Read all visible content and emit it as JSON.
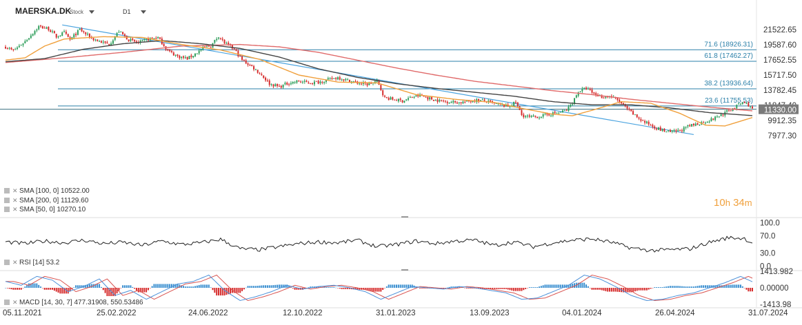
{
  "header": {
    "symbol": "MAERSKA.DK",
    "type": "Stock",
    "timeframe": "D1"
  },
  "colors": {
    "up": "#2e9e5b",
    "down": "#d62c2c",
    "sma50": "#f0a03c",
    "sma100": "#444444",
    "sma200": "#e06a6a",
    "fib": "#2a7fa8",
    "trend": "#4aa3df",
    "price_tag": "#7a7a7a",
    "macd_line": "#4a90d9",
    "signal_line": "#d9534f",
    "hist_pos": "#3a8fd0",
    "hist_neg": "#d62c2c"
  },
  "legend": {
    "sma100": "SMA [100, 0] 10522.00",
    "sma200": "SMA [200, 0] 11129.60",
    "sma50": "SMA [50, 0] 10270.10",
    "rsi": "RSI [14] 53.2",
    "macd": "MACD [14, 30, 7] 477.31908, 550.53486"
  },
  "timer": {
    "h": "10",
    "h_unit": "h",
    "m": "34",
    "m_unit": "m"
  },
  "current_price": "11330.00",
  "chart_data": {
    "type": "candlestick",
    "price_axis_ticks": [
      "21522.65",
      "19587.60",
      "17652.55",
      "15717.50",
      "13782.45",
      "11847.40",
      "9912.35",
      "7977.30"
    ],
    "x_axis_ticks": [
      "05.11.2021",
      "25.02.2022",
      "24.06.2022",
      "12.10.2022",
      "31.01.2023",
      "13.09.2023",
      "04.01.2024",
      "26.04.2024",
      "31.07.2024"
    ],
    "fibonacci": [
      {
        "label": "71.6 (18926.31)",
        "value": 18926.31
      },
      {
        "label": "61.8 (17462.27)",
        "value": 17462.27
      },
      {
        "label": "38.2 (13936.64)",
        "value": 13936.64
      },
      {
        "label": "23.6 (11755.53)",
        "value": 11755.53
      }
    ],
    "price_anchors": [
      [
        0,
        19300
      ],
      [
        4,
        18800
      ],
      [
        10,
        20000
      ],
      [
        17,
        21900
      ],
      [
        22,
        21600
      ],
      [
        26,
        20600
      ],
      [
        30,
        21100
      ],
      [
        33,
        20200
      ],
      [
        38,
        21500
      ],
      [
        44,
        20400
      ],
      [
        48,
        20000
      ],
      [
        53,
        19600
      ],
      [
        58,
        21300
      ],
      [
        63,
        20200
      ],
      [
        68,
        19800
      ],
      [
        73,
        20300
      ],
      [
        78,
        20500
      ],
      [
        83,
        18800
      ],
      [
        88,
        18100
      ],
      [
        93,
        17800
      ],
      [
        97,
        18400
      ],
      [
        102,
        19300
      ],
      [
        105,
        19400
      ],
      [
        109,
        20700
      ],
      [
        112,
        19800
      ],
      [
        117,
        19000
      ],
      [
        121,
        17600
      ],
      [
        126,
        16800
      ],
      [
        131,
        15700
      ],
      [
        135,
        14600
      ],
      [
        140,
        14200
      ],
      [
        145,
        14700
      ],
      [
        150,
        14900
      ],
      [
        155,
        14700
      ],
      [
        160,
        14800
      ],
      [
        165,
        15100
      ],
      [
        170,
        15400
      ],
      [
        175,
        15000
      ],
      [
        180,
        14700
      ],
      [
        185,
        14500
      ],
      [
        190,
        14900
      ],
      [
        194,
        12800
      ],
      [
        198,
        12600
      ],
      [
        203,
        12400
      ],
      [
        207,
        12800
      ],
      [
        212,
        13100
      ],
      [
        217,
        12700
      ],
      [
        222,
        12400
      ],
      [
        227,
        12300
      ],
      [
        232,
        12200
      ],
      [
        236,
        12300
      ],
      [
        240,
        12500
      ],
      [
        245,
        12400
      ],
      [
        249,
        12100
      ],
      [
        253,
        11900
      ],
      [
        257,
        11700
      ],
      [
        261,
        12200
      ],
      [
        264,
        10600
      ],
      [
        268,
        10300
      ],
      [
        273,
        10400
      ],
      [
        278,
        10700
      ],
      [
        283,
        10900
      ],
      [
        287,
        11200
      ],
      [
        290,
        12200
      ],
      [
        293,
        13600
      ],
      [
        297,
        14000
      ],
      [
        301,
        13300
      ],
      [
        305,
        12900
      ],
      [
        309,
        13000
      ],
      [
        313,
        12500
      ],
      [
        317,
        11600
      ],
      [
        321,
        10700
      ],
      [
        326,
        9800
      ],
      [
        331,
        9200
      ],
      [
        335,
        8700
      ],
      [
        340,
        8400
      ],
      [
        345,
        8600
      ],
      [
        349,
        9100
      ],
      [
        353,
        9400
      ],
      [
        357,
        9700
      ],
      [
        361,
        10000
      ],
      [
        365,
        10500
      ],
      [
        369,
        11000
      ],
      [
        373,
        11600
      ],
      [
        377,
        12200
      ],
      [
        380,
        11900
      ],
      [
        382,
        11330
      ]
    ],
    "sma50_anchors": [
      [
        0,
        17600
      ],
      [
        10,
        17900
      ],
      [
        20,
        19400
      ],
      [
        30,
        20300
      ],
      [
        50,
        20600
      ],
      [
        70,
        20500
      ],
      [
        90,
        19600
      ],
      [
        110,
        18900
      ],
      [
        130,
        17700
      ],
      [
        150,
        15700
      ],
      [
        170,
        14800
      ],
      [
        190,
        14700
      ],
      [
        210,
        13200
      ],
      [
        230,
        12600
      ],
      [
        250,
        12200
      ],
      [
        265,
        11400
      ],
      [
        280,
        10700
      ],
      [
        290,
        10500
      ],
      [
        300,
        11200
      ],
      [
        315,
        12300
      ],
      [
        330,
        12100
      ],
      [
        345,
        10800
      ],
      [
        358,
        9300
      ],
      [
        368,
        9200
      ],
      [
        382,
        10270
      ]
    ],
    "sma100_anchors": [
      [
        0,
        17400
      ],
      [
        20,
        17800
      ],
      [
        40,
        19000
      ],
      [
        60,
        19700
      ],
      [
        80,
        20100
      ],
      [
        100,
        19700
      ],
      [
        120,
        19100
      ],
      [
        140,
        18000
      ],
      [
        160,
        16500
      ],
      [
        180,
        15400
      ],
      [
        200,
        14600
      ],
      [
        220,
        14000
      ],
      [
        240,
        13500
      ],
      [
        260,
        13000
      ],
      [
        280,
        12300
      ],
      [
        300,
        11900
      ],
      [
        320,
        11900
      ],
      [
        340,
        11500
      ],
      [
        360,
        10900
      ],
      [
        382,
        10522
      ]
    ],
    "sma200_anchors": [
      [
        0,
        17300
      ],
      [
        30,
        17900
      ],
      [
        60,
        18600
      ],
      [
        90,
        19400
      ],
      [
        120,
        19600
      ],
      [
        140,
        19300
      ],
      [
        160,
        18600
      ],
      [
        180,
        17600
      ],
      [
        200,
        16600
      ],
      [
        220,
        15700
      ],
      [
        240,
        14900
      ],
      [
        260,
        14300
      ],
      [
        280,
        13700
      ],
      [
        300,
        13200
      ],
      [
        320,
        12600
      ],
      [
        340,
        12100
      ],
      [
        360,
        11600
      ],
      [
        382,
        11129.6
      ]
    ],
    "trendline": {
      "from": [
        29,
        22100
      ],
      "to": [
        352,
        8100
      ]
    },
    "rsi": {
      "ticks": [
        "100.0",
        "70.0",
        "30.0",
        "0.0"
      ],
      "value": 53.2,
      "anchors": [
        [
          0,
          56
        ],
        [
          10,
          52
        ],
        [
          20,
          58
        ],
        [
          30,
          54
        ],
        [
          40,
          60
        ],
        [
          50,
          52
        ],
        [
          60,
          55
        ],
        [
          70,
          48
        ],
        [
          80,
          58
        ],
        [
          90,
          50
        ],
        [
          100,
          54
        ],
        [
          110,
          62
        ],
        [
          120,
          40
        ],
        [
          130,
          38
        ],
        [
          140,
          45
        ],
        [
          150,
          52
        ],
        [
          160,
          56
        ],
        [
          170,
          54
        ],
        [
          180,
          60
        ],
        [
          190,
          45
        ],
        [
          200,
          50
        ],
        [
          210,
          58
        ],
        [
          220,
          52
        ],
        [
          230,
          58
        ],
        [
          240,
          60
        ],
        [
          250,
          48
        ],
        [
          260,
          56
        ],
        [
          270,
          45
        ],
        [
          280,
          54
        ],
        [
          290,
          60
        ],
        [
          300,
          63
        ],
        [
          310,
          55
        ],
        [
          320,
          42
        ],
        [
          330,
          36
        ],
        [
          340,
          38
        ],
        [
          350,
          40
        ],
        [
          360,
          55
        ],
        [
          370,
          66
        ],
        [
          378,
          64
        ],
        [
          382,
          53.2
        ]
      ]
    },
    "macd": {
      "ticks": [
        "1413.982",
        "0.00000",
        "-1413.98"
      ],
      "macd_value": 477.31908,
      "signal_value": 550.53486,
      "anchors": [
        [
          0,
          500
        ],
        [
          8,
          200
        ],
        [
          16,
          900
        ],
        [
          24,
          600
        ],
        [
          32,
          -300
        ],
        [
          40,
          100
        ],
        [
          48,
          700
        ],
        [
          56,
          -600
        ],
        [
          64,
          -200
        ],
        [
          72,
          -900
        ],
        [
          80,
          -300
        ],
        [
          88,
          300
        ],
        [
          96,
          500
        ],
        [
          104,
          1000
        ],
        [
          112,
          -200
        ],
        [
          120,
          -1000
        ],
        [
          128,
          -700
        ],
        [
          136,
          -300
        ],
        [
          144,
          200
        ],
        [
          152,
          -100
        ],
        [
          160,
          100
        ],
        [
          168,
          200
        ],
        [
          176,
          0
        ],
        [
          184,
          -300
        ],
        [
          192,
          -900
        ],
        [
          200,
          -400
        ],
        [
          208,
          100
        ],
        [
          216,
          0
        ],
        [
          224,
          -100
        ],
        [
          232,
          100
        ],
        [
          240,
          0
        ],
        [
          248,
          -200
        ],
        [
          256,
          -400
        ],
        [
          264,
          -900
        ],
        [
          272,
          -800
        ],
        [
          280,
          -300
        ],
        [
          288,
          200
        ],
        [
          296,
          1000
        ],
        [
          304,
          700
        ],
        [
          312,
          100
        ],
        [
          320,
          -600
        ],
        [
          328,
          -1000
        ],
        [
          336,
          -900
        ],
        [
          344,
          -600
        ],
        [
          352,
          -400
        ],
        [
          360,
          0
        ],
        [
          368,
          400
        ],
        [
          376,
          900
        ],
        [
          382,
          477.3
        ]
      ]
    },
    "n_bars": 383
  }
}
